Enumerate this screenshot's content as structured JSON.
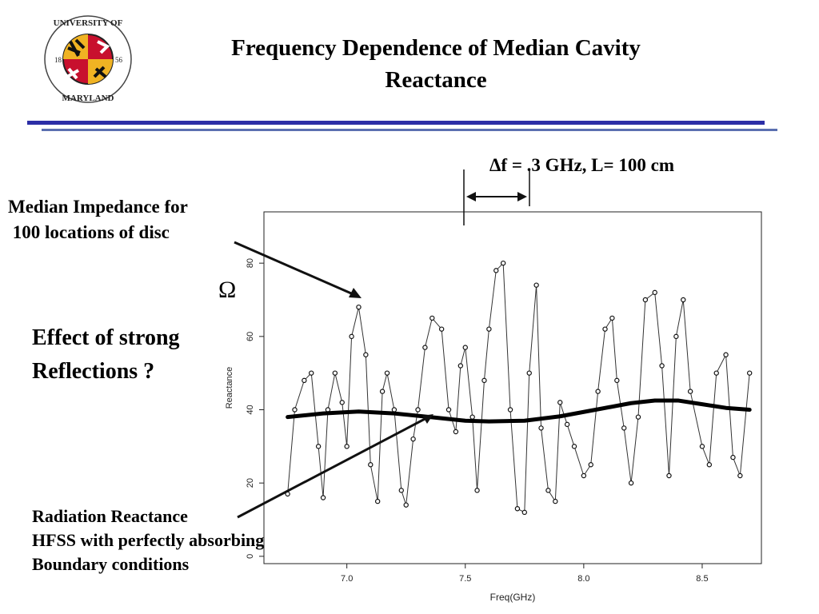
{
  "slide": {
    "title_line1": "Frequency Dependence of Median Cavity",
    "title_line2": "Reactance",
    "logo_text": "UNIVERSITY OF MARYLAND",
    "logo_year_left": "18",
    "logo_year_right": "56",
    "annotation_median_line1": "Median Impedance for",
    "annotation_median_line2": " 100 locations of disc",
    "effect_line1": "Effect of strong",
    "effect_line2": "Reflections ?",
    "radiation_line1": "Radiation Reactance",
    "radiation_line2": "HFSS with perfectly absorbing",
    "radiation_line3": "Boundary conditions",
    "delta_label": "Δf = .3 GHz, L= 100 cm",
    "omega_label": "Ω"
  },
  "colors": {
    "rule_primary": "#2c2ea6",
    "rule_secondary": "#5b6fb0",
    "logo_red": "#c8102e",
    "logo_gold": "#f0b323"
  },
  "chart_data": {
    "type": "line",
    "xlabel": "Freq(GHz)",
    "ylabel": "Reactance",
    "xlim": [
      6.65,
      8.75
    ],
    "ylim": [
      -2,
      94
    ],
    "x_ticks": [
      "7.0",
      "7.5",
      "8.0",
      "8.5"
    ],
    "y_ticks": [
      "0",
      "20",
      "40",
      "60",
      "80"
    ],
    "series": [
      {
        "style": "open-circle markers",
        "x": [
          6.75,
          6.78,
          6.82,
          6.85,
          6.88,
          6.9,
          6.92,
          6.95,
          6.98,
          7.0,
          7.02,
          7.05,
          7.08,
          7.1,
          7.13,
          7.15,
          7.17,
          7.2,
          7.23,
          7.25,
          7.28,
          7.3,
          7.33,
          7.36,
          7.4,
          7.43,
          7.46,
          7.48,
          7.5,
          7.53,
          7.55,
          7.58,
          7.6,
          7.63,
          7.66,
          7.69,
          7.72,
          7.75,
          7.77,
          7.8,
          7.82,
          7.85,
          7.88,
          7.9,
          7.93,
          7.96,
          8.0,
          8.03,
          8.06,
          8.09,
          8.12,
          8.14,
          8.17,
          8.2,
          8.23,
          8.26,
          8.3,
          8.33,
          8.36,
          8.39,
          8.42,
          8.45,
          8.5,
          8.53,
          8.56,
          8.6,
          8.63,
          8.66,
          8.7
        ],
        "values": [
          17,
          40,
          48,
          50,
          30,
          16,
          40,
          50,
          42,
          30,
          60,
          68,
          55,
          25,
          15,
          45,
          50,
          40,
          18,
          14,
          32,
          40,
          57,
          65,
          62,
          40,
          34,
          52,
          57,
          38,
          18,
          48,
          62,
          78,
          80,
          40,
          13,
          12,
          50,
          74,
          35,
          18,
          15,
          42,
          36,
          30,
          22,
          25,
          45,
          62,
          65,
          48,
          35,
          20,
          38,
          70,
          72,
          52,
          22,
          60,
          70,
          45,
          30,
          25,
          50,
          55,
          27,
          22,
          50
        ]
      },
      {
        "style": "thick smooth line",
        "x": [
          6.75,
          6.9,
          7.05,
          7.2,
          7.35,
          7.5,
          7.6,
          7.75,
          7.9,
          8.05,
          8.2,
          8.3,
          8.4,
          8.5,
          8.6,
          8.7
        ],
        "values": [
          38,
          39,
          39.5,
          39,
          38,
          37,
          36.8,
          37,
          38.2,
          40,
          41.8,
          42.5,
          42.5,
          41.5,
          40.5,
          40
        ]
      }
    ]
  }
}
